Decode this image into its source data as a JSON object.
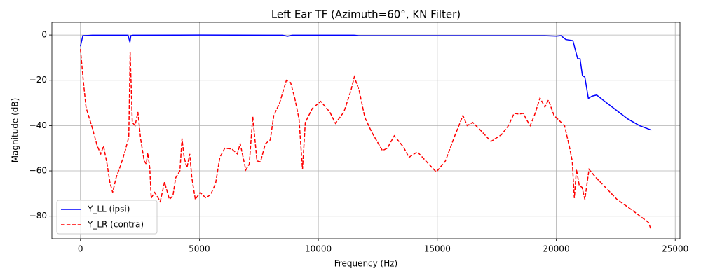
{
  "chart_data": {
    "type": "line",
    "title": "Left Ear TF (Azimuth=60°, KN Filter)",
    "xlabel": "Frequency (Hz)",
    "ylabel": "Magnitude (dB)",
    "xlim": [
      -1200,
      25200
    ],
    "ylim": [
      -90,
      5.6
    ],
    "xticks": [
      0,
      5000,
      10000,
      15000,
      20000,
      25000
    ],
    "yticks": [
      {
        "value": -80,
        "label": "−80"
      },
      {
        "value": -60,
        "label": "−60"
      },
      {
        "value": -40,
        "label": "−40"
      },
      {
        "value": -20,
        "label": "−20"
      },
      0
    ],
    "grid": true,
    "legend": "lower left",
    "series": [
      {
        "name": "Y_LL (ipsi)",
        "color": "#0000ff",
        "linestyle": "solid",
        "x": [
          0,
          100,
          500,
          2000,
          2080,
          2120,
          2200,
          5000,
          8500,
          8700,
          8900,
          11500,
          11700,
          19500,
          20000,
          20200,
          20400,
          20700,
          20900,
          21000,
          21100,
          21200,
          21350,
          21500,
          21700,
          22000,
          22500,
          23000,
          23500,
          24000
        ],
        "values": [
          -5,
          -0.3,
          -0.1,
          -0.1,
          -3.2,
          -0.3,
          -0.1,
          0,
          -0.1,
          -0.6,
          -0.1,
          -0.1,
          -0.3,
          -0.3,
          -0.5,
          -0.3,
          -2,
          -2.5,
          -10.5,
          -10.5,
          -18,
          -18.5,
          -28,
          -27,
          -26.5,
          -29,
          -33,
          -37,
          -40,
          -42
        ]
      },
      {
        "name": "Y_LR (contra)",
        "color": "#ff0000",
        "linestyle": "dashed",
        "x": [
          0,
          118,
          236,
          470,
          707,
          854,
          970,
          1120,
          1237,
          1355,
          1500,
          1708,
          1885,
          2032,
          2090,
          2180,
          2297,
          2415,
          2532,
          2680,
          2768,
          2827,
          2915,
          2974,
          3121,
          3357,
          3534,
          3740,
          3887,
          4005,
          4181,
          4270,
          4358,
          4476,
          4594,
          4682,
          4829,
          5035,
          5271,
          5477,
          5683,
          5860,
          6066,
          6360,
          6596,
          6714,
          6950,
          7097,
          7244,
          7420,
          7568,
          7774,
          7980,
          8127,
          8363,
          8657,
          8834,
          9011,
          9187,
          9334,
          9452,
          9747,
          10100,
          10483,
          10718,
          11072,
          11366,
          11513,
          11720,
          11955,
          12250,
          12692,
          12898,
          13192,
          13575,
          13810,
          14164,
          14517,
          14959,
          15342,
          15724,
          16078,
          16254,
          16490,
          16814,
          17256,
          17697,
          17992,
          18227,
          18433,
          18610,
          18787,
          18905,
          19081,
          19317,
          19523,
          19670,
          19906,
          20348,
          20554,
          20672,
          20760,
          20848,
          20966,
          21084,
          21202,
          21378,
          21673,
          22556,
          23145,
          23881,
          23970
        ],
        "values": [
          -6.2,
          -20,
          -32,
          -40,
          -49,
          -52.5,
          -49,
          -57,
          -65,
          -69.5,
          -63,
          -57,
          -51,
          -45,
          -7.7,
          -38.6,
          -40,
          -34,
          -46,
          -55.6,
          -57,
          -52,
          -58.7,
          -72,
          -69.5,
          -73.5,
          -65,
          -72.6,
          -71,
          -63,
          -60,
          -45.7,
          -54,
          -58.7,
          -52.5,
          -63,
          -72.6,
          -69.5,
          -72,
          -70.4,
          -65.5,
          -54,
          -50,
          -50.3,
          -52.5,
          -47.9,
          -59.6,
          -57,
          -36,
          -55.6,
          -56,
          -48,
          -46.3,
          -35.5,
          -30.3,
          -20,
          -21,
          -28,
          -37,
          -59.3,
          -38.6,
          -32.4,
          -29.3,
          -34,
          -39,
          -34,
          -24.7,
          -18.5,
          -24.7,
          -36.4,
          -43,
          -51,
          -50,
          -44.5,
          -49.4,
          -54,
          -51.6,
          -55.6,
          -60.5,
          -55.6,
          -44.8,
          -35.5,
          -40,
          -38.6,
          -42,
          -47,
          -44,
          -40,
          -34.6,
          -34.9,
          -34.6,
          -38,
          -40,
          -35.5,
          -27.8,
          -31.8,
          -28.7,
          -35.5,
          -40,
          -49.4,
          -55.6,
          -72,
          -59.3,
          -66.4,
          -67.3,
          -72.6,
          -59.3,
          -63,
          -72.6,
          -77,
          -82.8,
          -85.6
        ]
      }
    ]
  }
}
